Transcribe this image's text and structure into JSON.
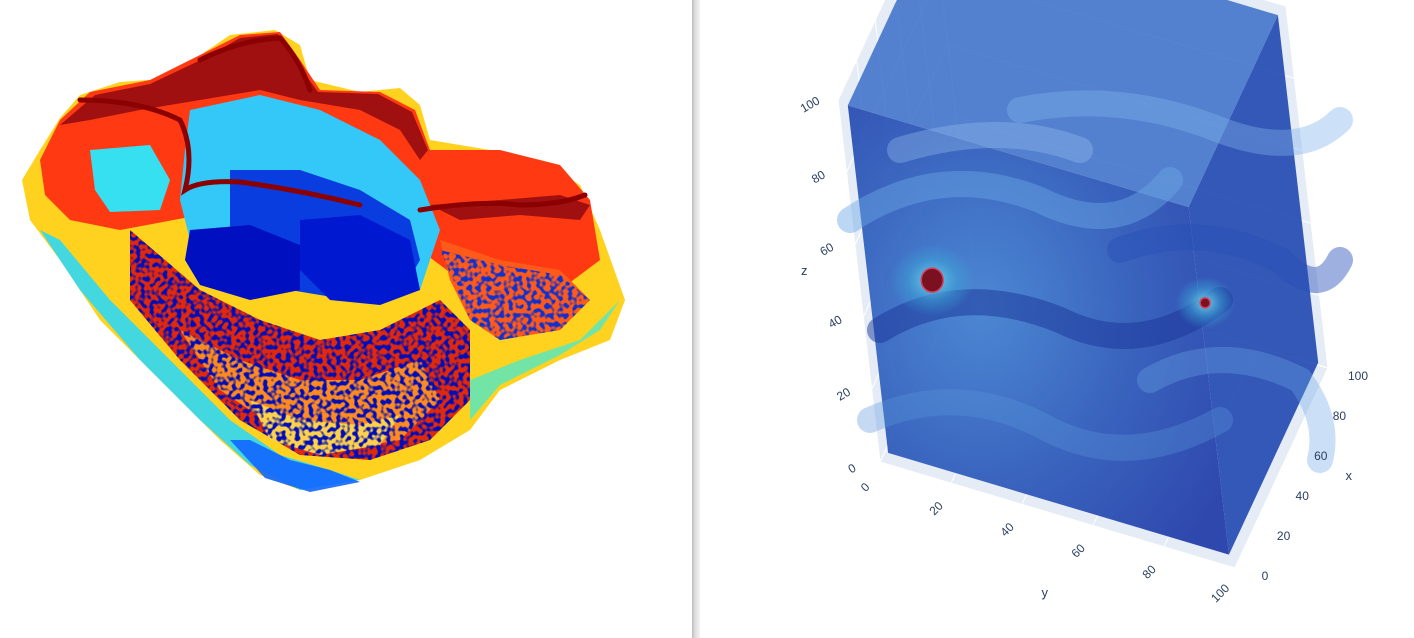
{
  "colors": {
    "page_background": "#ffffff",
    "divider": "#d0d0d0",
    "scene_grid": "#e5ecf6",
    "axis_text": "#2a3f5f",
    "volume_low": "#1f3aa8",
    "volume_mid": "#3f7fd0",
    "volume_high": "#7a1020"
  },
  "chart_data": [
    {
      "type": "scatter",
      "subtype": "3d-voxel-point-cloud",
      "colormap": "jet",
      "axes_visible": false,
      "legend": "none",
      "title": "",
      "xlabel": "",
      "ylabel": ""
    },
    {
      "type": "heatmap",
      "subtype": "3d-volume-render",
      "colorscale": [
        "#1f3aa8",
        "#3f7fd0",
        "#6fb8e8",
        "#7a1020"
      ],
      "opacity": "semi-transparent isosurfaces",
      "grid": true,
      "legend": "none",
      "xaxis": {
        "title": "x",
        "range": [
          0,
          100
        ],
        "ticks": [
          "0",
          "20",
          "40",
          "60",
          "80",
          "100"
        ]
      },
      "yaxis": {
        "title": "y",
        "range": [
          0,
          100
        ],
        "ticks": [
          "0",
          "20",
          "40",
          "60",
          "80",
          "100"
        ]
      },
      "zaxis": {
        "title": "z",
        "range": [
          0,
          100
        ],
        "ticks": [
          "0",
          "20",
          "40",
          "60",
          "80",
          "100"
        ]
      },
      "hotspots": [
        {
          "x": 10,
          "y": 18,
          "z": 50
        },
        {
          "x": 45,
          "y": 85,
          "z": 44
        }
      ]
    }
  ]
}
